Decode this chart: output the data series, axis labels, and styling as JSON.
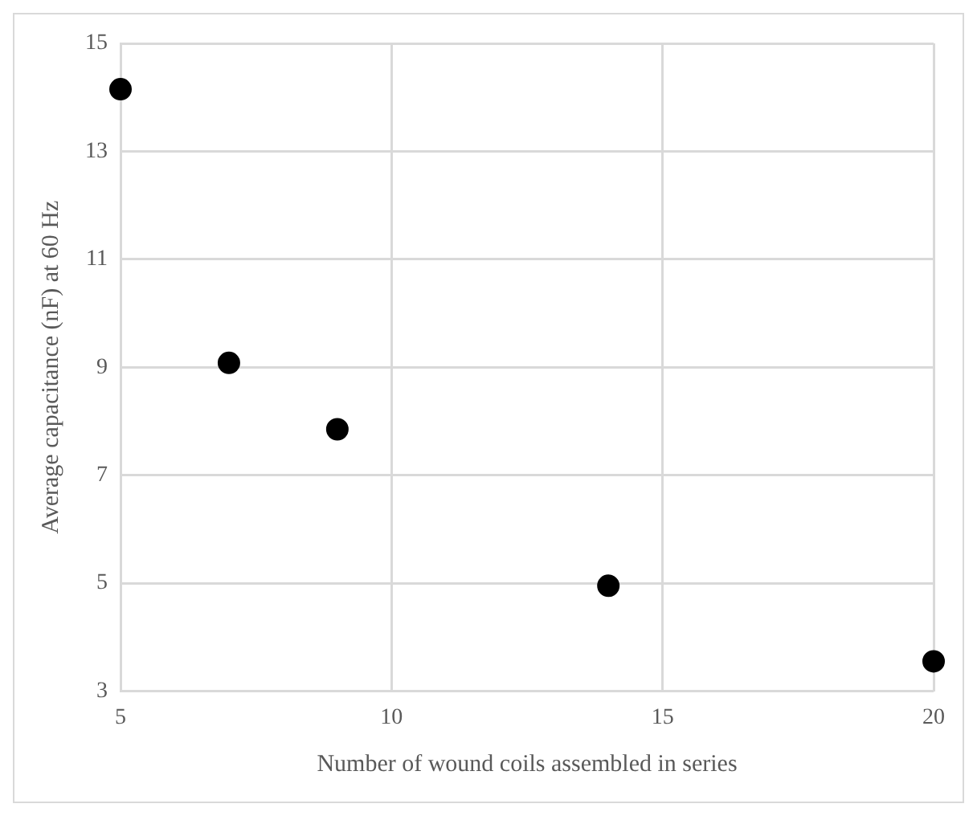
{
  "chart_data": {
    "type": "scatter",
    "xlabel": "Number of wound coils assembled in series",
    "ylabel": "Average capacitance (nF) at 60 Hz",
    "x": [
      5,
      7,
      9,
      14,
      20
    ],
    "series": [
      {
        "color": "#000000",
        "values": [
          14.15,
          9.08,
          7.85,
          4.95,
          3.55
        ]
      }
    ],
    "xlim": [
      5,
      20
    ],
    "xticks": [
      5,
      10,
      15,
      20
    ],
    "ylim": [
      3,
      15
    ],
    "yticks": [
      3,
      5,
      7,
      9,
      11,
      13,
      15
    ],
    "grid": true,
    "legend": false,
    "marker": "circle"
  }
}
